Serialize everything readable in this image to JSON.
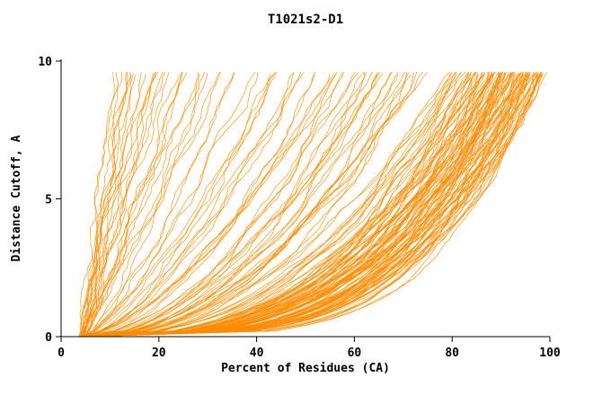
{
  "chart_data": {
    "type": "line",
    "title": "T1021s2-D1",
    "xlabel": "Percent of Residues (CA)",
    "ylabel": "Distance Cutoff, A",
    "xlim": [
      0,
      100
    ],
    "ylim": [
      0,
      10
    ],
    "xticks": [
      0,
      20,
      40,
      60,
      80,
      100
    ],
    "yticks": [
      0,
      5,
      10
    ],
    "grid": false,
    "legend": null,
    "line_color": "#ff8c00",
    "axis_color": "#000000",
    "background_color": "#ffffff",
    "curve_model": "percent(y) = p0 + (pmax - p0) * (y / y_top)^k",
    "y_top": 9.6,
    "curves": [
      [
        4,
        11,
        1.1
      ],
      [
        4,
        13,
        1.0
      ],
      [
        5,
        14,
        1.2
      ],
      [
        4,
        16,
        0.95
      ],
      [
        5,
        18,
        1.05
      ],
      [
        4,
        20,
        0.9
      ],
      [
        5,
        22,
        1.1
      ],
      [
        4,
        24,
        0.85
      ],
      [
        5,
        26,
        1.0
      ],
      [
        4,
        28,
        0.9
      ],
      [
        5,
        30,
        0.8
      ],
      [
        4,
        33,
        0.95
      ],
      [
        5,
        35,
        0.75
      ],
      [
        4,
        19,
        1.15
      ],
      [
        5,
        15,
        1.0
      ],
      [
        4,
        40,
        0.7
      ],
      [
        5,
        44,
        0.65
      ],
      [
        4,
        48,
        0.6
      ],
      [
        5,
        52,
        0.55
      ],
      [
        4,
        55,
        0.6
      ],
      [
        5,
        58,
        0.5
      ],
      [
        4,
        60,
        0.55
      ],
      [
        5,
        62,
        0.5
      ],
      [
        4,
        65,
        0.45
      ],
      [
        5,
        68,
        0.5
      ],
      [
        4,
        70,
        0.45
      ],
      [
        5,
        72,
        0.4
      ],
      [
        4,
        74,
        0.5
      ],
      [
        5,
        66,
        0.55
      ],
      [
        4,
        57,
        0.65
      ],
      [
        5,
        50,
        0.7
      ],
      [
        4,
        45,
        0.75
      ],
      [
        5,
        63,
        0.48
      ],
      [
        4,
        69,
        0.42
      ],
      [
        5,
        73,
        0.46
      ],
      [
        4,
        80,
        0.4
      ],
      [
        5,
        81,
        0.38
      ],
      [
        4,
        82,
        0.36
      ],
      [
        5,
        83,
        0.35
      ],
      [
        4,
        84,
        0.34
      ],
      [
        5,
        85,
        0.33
      ],
      [
        4,
        85,
        0.36
      ],
      [
        5,
        86,
        0.32
      ],
      [
        4,
        86,
        0.35
      ],
      [
        5,
        87,
        0.31
      ],
      [
        4,
        87,
        0.34
      ],
      [
        5,
        88,
        0.3
      ],
      [
        4,
        88,
        0.33
      ],
      [
        5,
        88,
        0.36
      ],
      [
        4,
        89,
        0.3
      ],
      [
        5,
        89,
        0.33
      ],
      [
        4,
        90,
        0.28
      ],
      [
        5,
        90,
        0.31
      ],
      [
        4,
        90,
        0.34
      ],
      [
        5,
        91,
        0.28
      ],
      [
        4,
        91,
        0.31
      ],
      [
        5,
        91,
        0.34
      ],
      [
        4,
        92,
        0.27
      ],
      [
        5,
        92,
        0.3
      ],
      [
        4,
        92,
        0.33
      ],
      [
        5,
        93,
        0.26
      ],
      [
        4,
        93,
        0.29
      ],
      [
        5,
        93,
        0.32
      ],
      [
        4,
        94,
        0.26
      ],
      [
        5,
        94,
        0.29
      ],
      [
        4,
        94,
        0.32
      ],
      [
        5,
        95,
        0.25
      ],
      [
        4,
        95,
        0.28
      ],
      [
        5,
        95,
        0.31
      ],
      [
        4,
        96,
        0.25
      ],
      [
        5,
        96,
        0.28
      ],
      [
        4,
        96,
        0.31
      ],
      [
        5,
        97,
        0.24
      ],
      [
        4,
        97,
        0.27
      ],
      [
        5,
        97,
        0.3
      ],
      [
        4,
        98,
        0.24
      ],
      [
        5,
        98,
        0.27
      ],
      [
        4,
        98,
        0.3
      ],
      [
        5,
        99,
        0.23
      ],
      [
        4,
        99,
        0.26
      ],
      [
        5,
        99,
        0.29
      ],
      [
        4,
        96,
        0.34
      ],
      [
        5,
        94,
        0.35
      ],
      [
        4,
        92,
        0.36
      ],
      [
        5,
        90,
        0.37
      ],
      [
        4,
        88,
        0.38
      ],
      [
        5,
        86,
        0.4
      ],
      [
        4,
        84,
        0.42
      ],
      [
        5,
        82,
        0.44
      ],
      [
        4,
        80,
        0.46
      ]
    ]
  }
}
